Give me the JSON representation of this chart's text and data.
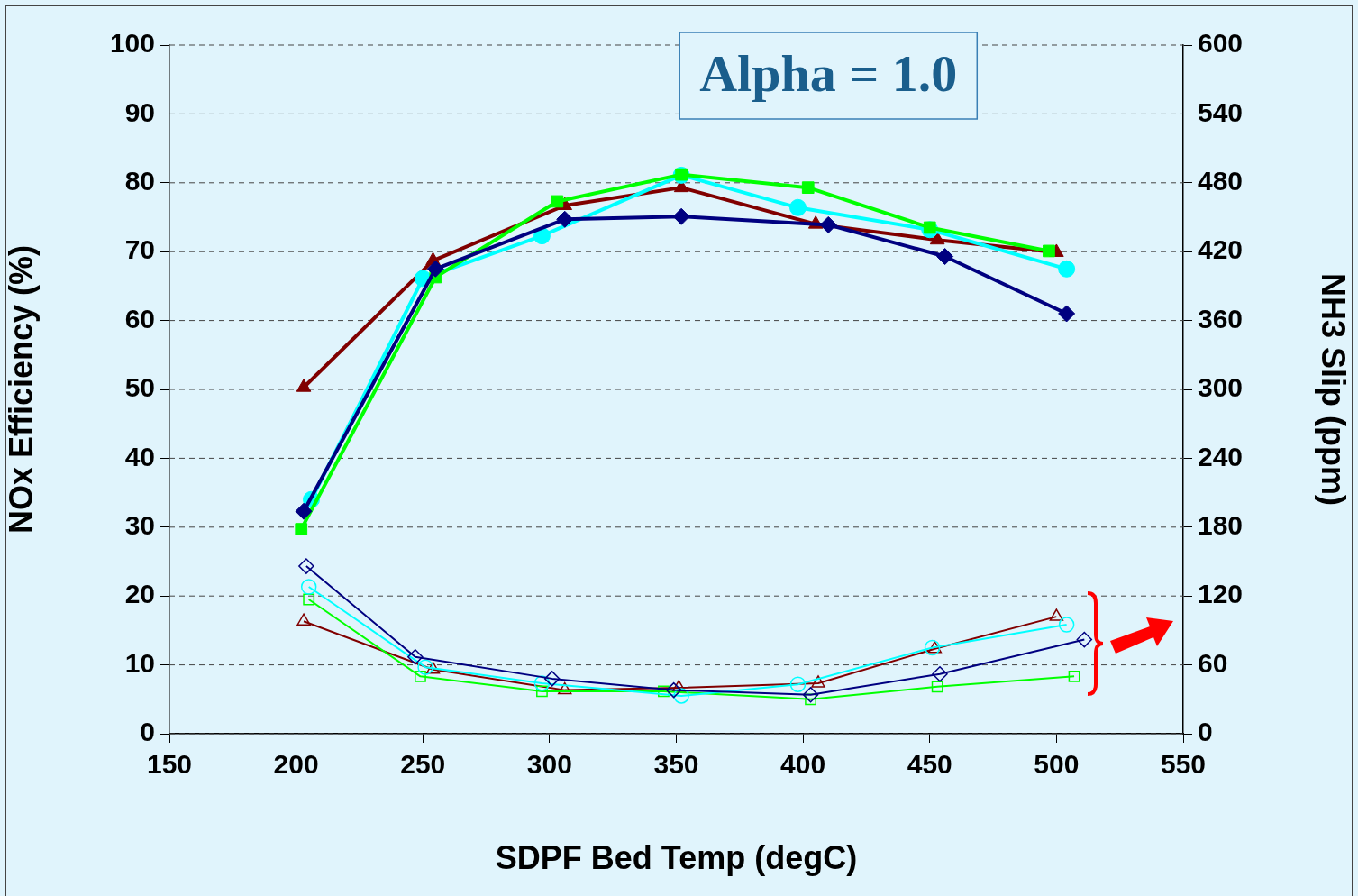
{
  "chart_data": {
    "type": "line",
    "xlabel": "SDPF Bed Temp (degC)",
    "ylabel": "NOx Efficiency (%)",
    "y2label": "NH3 Slip (ppm)",
    "annotations": [
      "Alpha = 1.0"
    ],
    "xlim": [
      150,
      550
    ],
    "xticks": [
      150,
      200,
      250,
      300,
      350,
      400,
      450,
      500,
      550
    ],
    "ylim": [
      0,
      100
    ],
    "yticks": [
      0,
      10,
      20,
      30,
      40,
      50,
      60,
      70,
      80,
      90,
      100
    ],
    "y2lim": [
      0,
      600
    ],
    "y2ticks": [
      0,
      60,
      120,
      180,
      240,
      300,
      360,
      420,
      480,
      540,
      600
    ],
    "grid": "y",
    "legend": false,
    "series": [
      {
        "color": "#000080",
        "marker": "diamond",
        "x": [
          203,
          255,
          306,
          352,
          410,
          456,
          504
        ],
        "values": [
          32.3,
          67.5,
          74.7,
          75.1,
          73.9,
          69.3,
          61
        ]
      },
      {
        "color": "#00ff00",
        "marker": "square",
        "x": [
          202,
          255,
          303,
          352,
          402,
          450,
          497
        ],
        "values": [
          29.7,
          66.3,
          77.3,
          81.2,
          79.3,
          73.5,
          70.1
        ]
      },
      {
        "color": "#00ffff",
        "marker": "circle",
        "x": [
          206,
          250,
          297,
          352,
          398,
          450,
          504
        ],
        "values": [
          34,
          66.1,
          72.3,
          81.1,
          76.4,
          73.2,
          67.5
        ]
      },
      {
        "color": "#800000",
        "marker": "triangle",
        "x": [
          203,
          254,
          306,
          352,
          405,
          453,
          500
        ],
        "values": [
          50.3,
          68.7,
          76.7,
          79.3,
          74,
          71.7,
          69.9
        ]
      },
      {
        "color": "#000080",
        "marker": "diamond",
        "axis": "y2",
        "x": [
          204,
          247,
          301,
          349,
          403,
          454,
          511
        ],
        "values": [
          146,
          67,
          48,
          38,
          34,
          52,
          82
        ]
      },
      {
        "color": "#00ffff",
        "marker": "circle",
        "axis": "y2",
        "x": [
          205,
          251,
          297,
          352,
          398,
          451,
          504
        ],
        "values": [
          128,
          58,
          44,
          33,
          43,
          75,
          95
        ]
      },
      {
        "color": "#00ff00",
        "marker": "square",
        "axis": "y2",
        "x": [
          205,
          249,
          297,
          345,
          403,
          453,
          507
        ],
        "values": [
          117,
          50,
          37,
          37,
          30,
          41,
          50
        ]
      },
      {
        "color": "#800000",
        "marker": "triangle",
        "axis": "y2",
        "x": [
          203,
          254,
          306,
          351,
          406,
          452,
          500
        ],
        "values": [
          98,
          56,
          38,
          40,
          44,
          74,
          102
        ]
      }
    ]
  }
}
